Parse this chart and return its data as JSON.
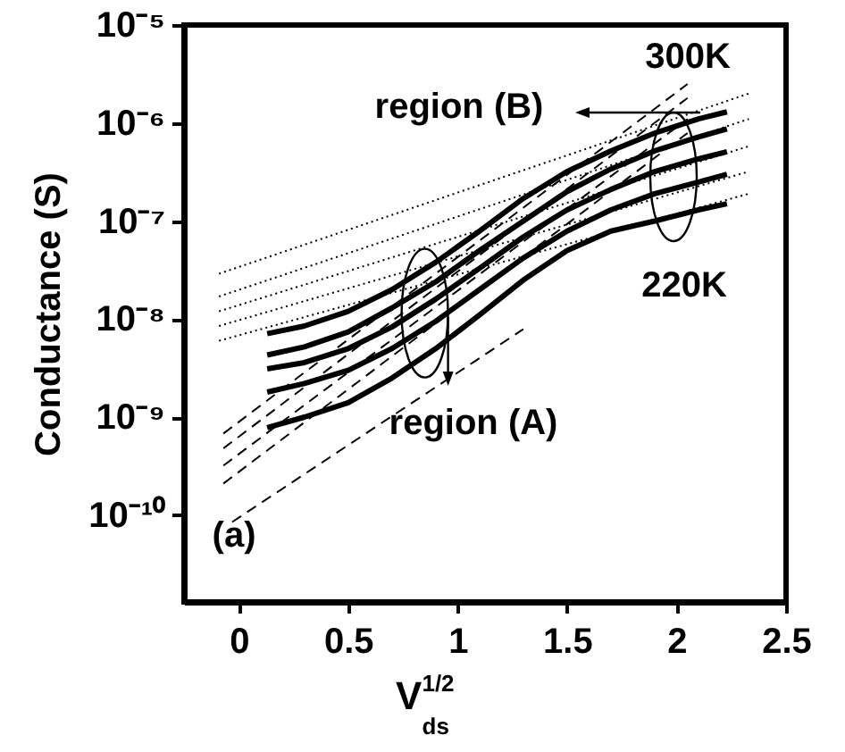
{
  "chart_data": {
    "type": "line",
    "xlabel": "V$^{1/2}$$_{ds}$",
    "ylabel": "Conductance (S)",
    "log": "y",
    "grid": false,
    "marker": "none",
    "xlim": [
      -0.25,
      2.5
    ],
    "xticks": [
      0.0,
      0.5,
      1.0,
      1.5,
      2.0,
      2.5
    ],
    "ylim": [
      1.3e-11,
      1e-05
    ],
    "yticks": [
      {
        "value": 1e-10,
        "label": "10⁻¹⁰"
      },
      {
        "value": 1e-09,
        "label": "10⁻⁹"
      },
      {
        "value": 1e-08,
        "label": "10⁻⁸"
      },
      {
        "value": 1e-07,
        "label": "10⁻⁷"
      },
      {
        "value": 1e-06,
        "label": "10⁻⁶"
      },
      {
        "value": 1e-05,
        "label": "10⁻⁵"
      }
    ],
    "annotations": [
      "300K",
      "220K",
      "region (B)",
      {
        "text": "region (A)",
        "x": 0.85,
        "y": 1.15e-08
      },
      "(a)"
    ],
    "series": [
      {
        "color": "#000000",
        "line_style": "solid",
        "x": [
          0.13,
          0.3,
          0.5,
          0.7,
          0.9,
          1.1,
          1.3,
          1.5,
          1.7,
          1.9,
          2.1,
          2.23
        ],
        "values": [
          7.1e-09,
          8.5e-09,
          1.2e-08,
          2e-08,
          3.8e-08,
          7.9e-08,
          1.7e-07,
          3.2e-07,
          5.2e-07,
          7.9e-07,
          1.1e-06,
          1.3e-06
        ]
      },
      {
        "color": "#000000",
        "line_style": "solid",
        "x": [
          0.13,
          0.3,
          0.5,
          0.7,
          0.9,
          1.1,
          1.3,
          1.5,
          1.7,
          1.9,
          2.1,
          2.23
        ],
        "values": [
          4.3e-09,
          5.2e-09,
          7.4e-09,
          1.3e-08,
          2.4e-08,
          5e-08,
          1e-07,
          2e-07,
          3.4e-07,
          5.2e-07,
          7.2e-07,
          8.7e-07
        ]
      },
      {
        "color": "#000000",
        "line_style": "solid",
        "x": [
          0.13,
          0.3,
          0.5,
          0.7,
          0.9,
          1.1,
          1.3,
          1.5,
          1.7,
          1.9,
          2.1,
          2.23
        ],
        "values": [
          3.1e-09,
          3.6e-09,
          5e-09,
          8.3e-09,
          1.6e-08,
          3.3e-08,
          6.9e-08,
          1.3e-07,
          2.1e-07,
          3.2e-07,
          4.3e-07,
          5.1e-07
        ]
      },
      {
        "color": "#000000",
        "line_style": "solid",
        "x": [
          0.13,
          0.3,
          0.5,
          0.7,
          0.9,
          1.1,
          1.3,
          1.5,
          1.7,
          1.9,
          2.1,
          2.23
        ],
        "values": [
          1.8e-09,
          2.2e-09,
          3e-09,
          5e-09,
          9.5e-09,
          2e-08,
          4.2e-08,
          7.9e-08,
          1.3e-07,
          1.9e-07,
          2.5e-07,
          3e-07
        ]
      },
      {
        "color": "#000000",
        "line_style": "solid",
        "x": [
          0.13,
          0.3,
          0.5,
          0.7,
          0.9,
          1.1,
          1.3,
          1.5,
          1.7,
          1.9,
          2.1,
          2.23
        ],
        "values": [
          7.8e-10,
          1e-09,
          1.4e-09,
          2.5e-09,
          5e-09,
          1.1e-08,
          2.5e-08,
          5e-08,
          7.9e-08,
          1e-07,
          1.3e-07,
          1.5e-07
        ]
      },
      {
        "color": "#000000",
        "line_style": "dotted",
        "x": [
          -0.09,
          2.33
        ],
        "values": [
          2.9e-08,
          2e-06
        ]
      },
      {
        "color": "#000000",
        "line_style": "dotted",
        "x": [
          -0.09,
          2.33
        ],
        "values": [
          1.7e-08,
          1.1e-06
        ]
      },
      {
        "color": "#000000",
        "line_style": "dotted",
        "x": [
          -0.09,
          2.33
        ],
        "values": [
          1.2e-08,
          5.8e-07
        ]
      },
      {
        "color": "#000000",
        "line_style": "dotted",
        "x": [
          -0.09,
          2.33
        ],
        "values": [
          8.5e-09,
          3.2e-07
        ]
      },
      {
        "color": "#000000",
        "line_style": "dotted",
        "x": [
          -0.09,
          2.33
        ],
        "values": [
          6e-09,
          1.9e-07
        ]
      },
      {
        "color": "#000000",
        "line_style": "dashed",
        "x": [
          -0.07,
          2.05
        ],
        "values": [
          6.8e-10,
          2.5e-06
        ]
      },
      {
        "color": "#000000",
        "line_style": "dashed",
        "x": [
          -0.07,
          2.05
        ],
        "values": [
          4.8e-10,
          1.8e-06
        ]
      },
      {
        "color": "#000000",
        "line_style": "dashed",
        "x": [
          -0.07,
          2.05
        ],
        "values": [
          3.2e-10,
          1.1e-06
        ]
      },
      {
        "color": "#000000",
        "line_style": "dashed",
        "x": [
          -0.07,
          2.05
        ],
        "values": [
          2.1e-10,
          7.9e-07
        ]
      },
      {
        "color": "#000000",
        "line_style": "dashed",
        "x": [
          -0.03,
          1.3
        ],
        "values": [
          8.5e-11,
          7.9e-09
        ]
      }
    ]
  }
}
